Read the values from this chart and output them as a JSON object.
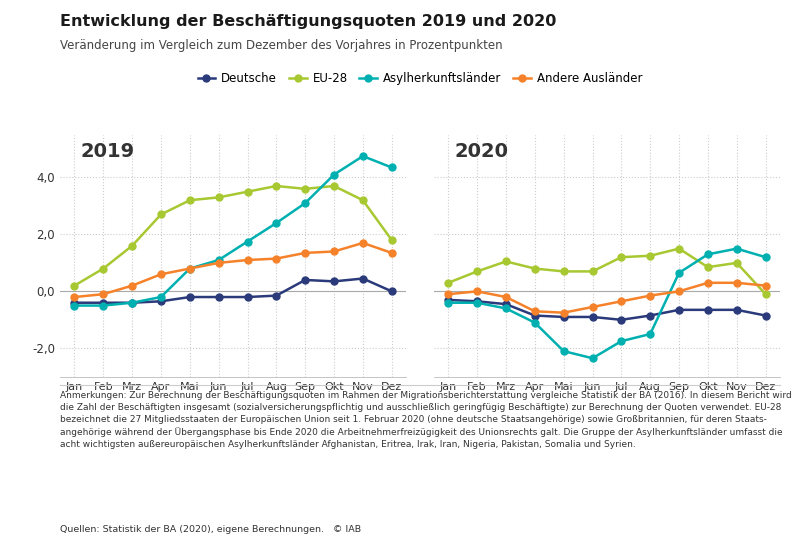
{
  "title": "Entwicklung der Beschäftigungsquoten 2019 und 2020",
  "subtitle": "Veränderung im Vergleich zum Dezember des Vorjahres in Prozentpunkten",
  "months": [
    "Jan",
    "Feb",
    "Mrz",
    "Apr",
    "Mai",
    "Jun",
    "Jul",
    "Aug",
    "Sep",
    "Okt",
    "Nov",
    "Dez"
  ],
  "legend_labels": [
    "Deutsche",
    "EU-28",
    "Asylherkunftsländer",
    "Andere Ausländer"
  ],
  "colors": {
    "Deutsche": "#2b3a7a",
    "EU-28": "#a8c832",
    "Asylherkunftsländer": "#00b0b0",
    "Andere Ausländer": "#f5822a"
  },
  "year_labels": [
    "2019",
    "2020"
  ],
  "data_2019": {
    "Deutsche": [
      -0.4,
      -0.4,
      -0.4,
      -0.35,
      -0.2,
      -0.2,
      -0.2,
      -0.15,
      0.4,
      0.35,
      0.45,
      0.0
    ],
    "EU-28": [
      0.2,
      0.8,
      1.6,
      2.7,
      3.2,
      3.3,
      3.5,
      3.7,
      3.6,
      3.7,
      3.2,
      1.8
    ],
    "Asylherkunftsländer": [
      -0.5,
      -0.5,
      -0.4,
      -0.2,
      0.8,
      1.1,
      1.75,
      2.4,
      3.1,
      4.1,
      4.75,
      4.35
    ],
    "Andere Ausländer": [
      -0.2,
      -0.1,
      0.2,
      0.6,
      0.8,
      1.0,
      1.1,
      1.15,
      1.35,
      1.4,
      1.7,
      1.35
    ]
  },
  "data_2020": {
    "Deutsche": [
      -0.3,
      -0.35,
      -0.45,
      -0.85,
      -0.9,
      -0.9,
      -1.0,
      -0.85,
      -0.65,
      -0.65,
      -0.65,
      -0.85
    ],
    "EU-28": [
      0.3,
      0.7,
      1.05,
      0.8,
      0.7,
      0.7,
      1.2,
      1.25,
      1.5,
      0.85,
      1.0,
      -0.1
    ],
    "Asylherkunftsländer": [
      -0.4,
      -0.4,
      -0.6,
      -1.1,
      -2.1,
      -2.35,
      -1.75,
      -1.5,
      0.65,
      1.3,
      1.5,
      1.2
    ],
    "Andere Ausländer": [
      -0.1,
      0.0,
      -0.2,
      -0.7,
      -0.75,
      -0.55,
      -0.35,
      -0.15,
      0.0,
      0.3,
      0.3,
      0.2
    ]
  },
  "ylim": [
    -3.0,
    5.5
  ],
  "yticks": [
    -2.0,
    0.0,
    2.0,
    4.0
  ],
  "footnote_lines": [
    "Anmerkungen: Zur Berechnung der Beschäftigungsquoten im Rahmen der Migrationsberichterstattung vergleiche Statistik der BA (2016). In diesem Bericht wird",
    "die Zahl der Beschäftigten insgesamt (sozialversicherungspflichtig und ausschließlich geringfügig Beschäftigte) zur Berechnung der Quoten verwendet. EU-28",
    "bezeichnet die 27 Mitgliedsstaaten der Europäischen Union seit 1. Februar 2020 (ohne deutsche Staatsangehörige) sowie Großbritannien, für deren Staats-",
    "angehörige während der Übergangsphase bis Ende 2020 die Arbeitnehmerfreizügigkeit des Unionsrechts galt. Die Gruppe der Asylherkunftsländer umfasst die",
    "acht wichtigsten außereuropäischen Asylherkunftsländer Afghanistan, Eritrea, Irak, Iran, Nigeria, Pakistan, Somalia und Syrien."
  ],
  "source": "Quellen: Statistik der BA (2020), eigene Berechnungen.   © IAB",
  "background_color": "#ffffff",
  "grid_color": "#cccccc",
  "marker_size": 5,
  "line_width": 1.8
}
